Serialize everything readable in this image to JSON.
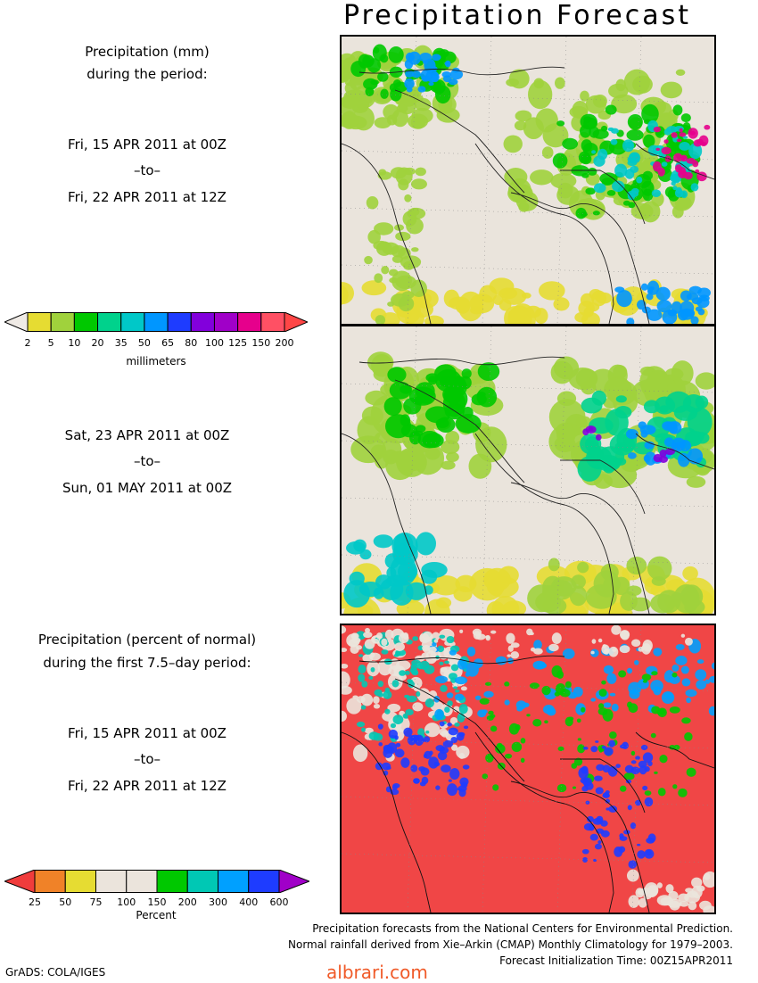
{
  "title": "Precipitation Forecast",
  "panel1": {
    "heading1": "Precipitation (mm)",
    "heading2": "during the period:",
    "start": "Fri, 15 APR 2011 at 00Z",
    "to": "–to–",
    "end": "Fri, 22 APR 2011 at 12Z"
  },
  "panel2": {
    "start": "Sat, 23 APR 2011 at 00Z",
    "to": "–to–",
    "end": "Sun, 01 MAY 2011 at 00Z"
  },
  "panel3": {
    "heading1": "Precipitation (percent of normal)",
    "heading2": "during the first 7.5–day period:",
    "start": "Fri, 15 APR 2011 at 00Z",
    "to": "–to–",
    "end": "Fri, 22 APR 2011 at 12Z"
  },
  "colorbar_mm": {
    "unit": "millimeters",
    "ticks": [
      "2",
      "5",
      "10",
      "20",
      "35",
      "50",
      "65",
      "80",
      "100",
      "125",
      "150",
      "200"
    ],
    "colors": [
      "#f0ebe6",
      "#e6dc32",
      "#a0d23c",
      "#00c800",
      "#00d28c",
      "#00c8c8",
      "#0096ff",
      "#1e3cff",
      "#8200dc",
      "#a000c8",
      "#e6008c",
      "#ff5064",
      "#ff4646"
    ]
  },
  "colorbar_pct": {
    "unit": "Percent",
    "ticks": [
      "25",
      "50",
      "75",
      "100",
      "150",
      "200",
      "300",
      "400",
      "600"
    ],
    "colors": [
      "#f03c3c",
      "#f08228",
      "#e6dc32",
      "#ebe4dc",
      "#ebe4dc",
      "#00c800",
      "#00c8b4",
      "#00a0ff",
      "#1e3cff",
      "#a000c8"
    ]
  },
  "credits": {
    "line1": "Precipitation forecasts from the National Centers for Environmental Prediction.",
    "line2": "Normal rainfall derived from Xie–Arkin (CMAP) Monthly Climatology for 1979–2003.",
    "line3": "Forecast Initialization Time: 00Z15APR2011"
  },
  "software": "GrADS: COLA/IGES",
  "watermark": "albrari.com"
}
